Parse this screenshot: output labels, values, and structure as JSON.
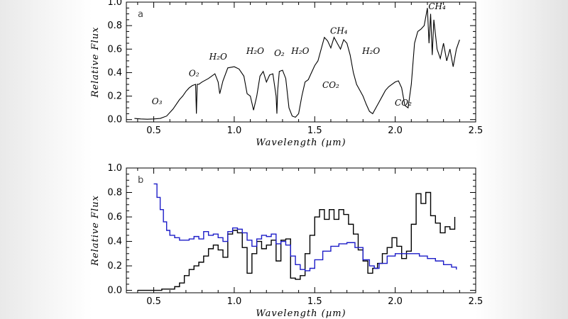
{
  "chart_data": [
    {
      "type": "line",
      "panel": "a",
      "xlabel": "Wavelength (µm)",
      "ylabel": "Relative Flux",
      "xlim": [
        0.33,
        2.5
      ],
      "ylim": [
        -0.02,
        1.0
      ],
      "xticks": [
        0.5,
        1.0,
        1.5,
        2.0,
        2.5
      ],
      "xtick_labels": [
        "0.5",
        "1.0",
        "1.5",
        "2.0",
        "2.5"
      ],
      "yticks": [
        0.0,
        0.2,
        0.4,
        0.6,
        0.8,
        1.0
      ],
      "ytick_labels": [
        "0.0",
        "0.2",
        "0.4",
        "0.6",
        "0.8",
        "1.0"
      ],
      "annotations": [
        {
          "text": "O3",
          "x": 0.52,
          "y": 0.13
        },
        {
          "text": "O2",
          "x": 0.75,
          "y": 0.37
        },
        {
          "text": "H2O",
          "x": 0.9,
          "y": 0.51
        },
        {
          "text": "H2O",
          "x": 1.13,
          "y": 0.56
        },
        {
          "text": "O2",
          "x": 1.28,
          "y": 0.54
        },
        {
          "text": "H2O",
          "x": 1.41,
          "y": 0.56
        },
        {
          "text": "CH4",
          "x": 1.65,
          "y": 0.73
        },
        {
          "text": "CO2",
          "x": 1.6,
          "y": 0.27
        },
        {
          "text": "H2O",
          "x": 1.85,
          "y": 0.56
        },
        {
          "text": "CO2",
          "x": 2.05,
          "y": 0.12
        },
        {
          "text": "CH4",
          "x": 2.26,
          "y": 0.94
        }
      ],
      "series": [
        {
          "name": "spectrum",
          "color": "#000000",
          "x": [
            0.38,
            0.42,
            0.46,
            0.5,
            0.54,
            0.58,
            0.62,
            0.66,
            0.68,
            0.7,
            0.72,
            0.74,
            0.76,
            0.765,
            0.77,
            0.78,
            0.8,
            0.84,
            0.88,
            0.9,
            0.91,
            0.93,
            0.96,
            1.0,
            1.03,
            1.06,
            1.08,
            1.1,
            1.12,
            1.14,
            1.16,
            1.18,
            1.2,
            1.22,
            1.24,
            1.26,
            1.265,
            1.27,
            1.28,
            1.3,
            1.32,
            1.34,
            1.36,
            1.38,
            1.4,
            1.42,
            1.44,
            1.46,
            1.48,
            1.5,
            1.52,
            1.54,
            1.56,
            1.58,
            1.6,
            1.62,
            1.64,
            1.66,
            1.68,
            1.7,
            1.72,
            1.74,
            1.76,
            1.78,
            1.8,
            1.82,
            1.84,
            1.86,
            1.88,
            1.9,
            1.92,
            1.94,
            1.96,
            1.98,
            2.0,
            2.02,
            2.04,
            2.06,
            2.08,
            2.1,
            2.12,
            2.14,
            2.16,
            2.18,
            2.2,
            2.21,
            2.22,
            2.23,
            2.24,
            2.26,
            2.28,
            2.3,
            2.32,
            2.34,
            2.36,
            2.38,
            2.4
          ],
          "y": [
            0.01,
            0.005,
            0.003,
            0.005,
            0.01,
            0.03,
            0.09,
            0.17,
            0.2,
            0.24,
            0.27,
            0.29,
            0.3,
            0.05,
            0.3,
            0.3,
            0.32,
            0.35,
            0.39,
            0.32,
            0.22,
            0.33,
            0.44,
            0.45,
            0.43,
            0.37,
            0.22,
            0.2,
            0.08,
            0.2,
            0.37,
            0.41,
            0.32,
            0.38,
            0.39,
            0.2,
            0.05,
            0.25,
            0.41,
            0.42,
            0.35,
            0.1,
            0.03,
            0.02,
            0.05,
            0.2,
            0.32,
            0.34,
            0.4,
            0.46,
            0.5,
            0.6,
            0.7,
            0.67,
            0.61,
            0.7,
            0.65,
            0.6,
            0.68,
            0.65,
            0.55,
            0.4,
            0.3,
            0.25,
            0.2,
            0.13,
            0.07,
            0.05,
            0.1,
            0.15,
            0.2,
            0.25,
            0.28,
            0.3,
            0.32,
            0.33,
            0.27,
            0.12,
            0.1,
            0.3,
            0.65,
            0.75,
            0.77,
            0.8,
            0.95,
            0.65,
            0.9,
            0.55,
            0.85,
            0.6,
            0.52,
            0.65,
            0.5,
            0.6,
            0.45,
            0.6,
            0.68
          ]
        }
      ]
    },
    {
      "type": "line",
      "panel": "b",
      "step": true,
      "xlabel": "Wavelength (µm)",
      "ylabel": "Relative Flux",
      "xlim": [
        0.33,
        2.5
      ],
      "ylim": [
        -0.02,
        1.0
      ],
      "xticks": [
        0.5,
        1.0,
        1.5,
        2.0,
        2.5
      ],
      "xtick_labels": [
        "0.5",
        "1.0",
        "1.5",
        "2.0",
        "2.5"
      ],
      "yticks": [
        0.0,
        0.2,
        0.4,
        0.6,
        0.8,
        1.0
      ],
      "ytick_labels": [
        "0.0",
        "0.2",
        "0.4",
        "0.6",
        "0.8",
        "1.0"
      ],
      "series": [
        {
          "name": "black binned spectrum",
          "color": "#000000",
          "x": [
            0.4,
            0.5,
            0.55,
            0.6,
            0.63,
            0.66,
            0.69,
            0.72,
            0.75,
            0.78,
            0.81,
            0.84,
            0.87,
            0.9,
            0.93,
            0.96,
            0.99,
            1.02,
            1.05,
            1.08,
            1.11,
            1.14,
            1.17,
            1.2,
            1.23,
            1.26,
            1.29,
            1.32,
            1.35,
            1.38,
            1.41,
            1.44,
            1.47,
            1.5,
            1.53,
            1.56,
            1.59,
            1.62,
            1.65,
            1.68,
            1.71,
            1.74,
            1.77,
            1.8,
            1.83,
            1.86,
            1.89,
            1.92,
            1.95,
            1.98,
            2.01,
            2.04,
            2.07,
            2.1,
            2.13,
            2.16,
            2.19,
            2.22,
            2.25,
            2.28,
            2.31,
            2.34,
            2.37
          ],
          "y": [
            0.0,
            0.0,
            0.01,
            0.01,
            0.03,
            0.06,
            0.12,
            0.17,
            0.2,
            0.23,
            0.28,
            0.34,
            0.37,
            0.33,
            0.27,
            0.46,
            0.49,
            0.47,
            0.35,
            0.14,
            0.3,
            0.4,
            0.34,
            0.37,
            0.41,
            0.24,
            0.41,
            0.42,
            0.1,
            0.09,
            0.12,
            0.3,
            0.45,
            0.6,
            0.66,
            0.58,
            0.66,
            0.58,
            0.66,
            0.62,
            0.54,
            0.46,
            0.33,
            0.24,
            0.14,
            0.18,
            0.22,
            0.3,
            0.35,
            0.43,
            0.36,
            0.26,
            0.32,
            0.54,
            0.79,
            0.71,
            0.8,
            0.61,
            0.55,
            0.47,
            0.52,
            0.5,
            0.6
          ]
        },
        {
          "name": "blue model",
          "color": "#1c1cc8",
          "x": [
            0.5,
            0.52,
            0.54,
            0.56,
            0.58,
            0.6,
            0.63,
            0.66,
            0.69,
            0.72,
            0.75,
            0.78,
            0.81,
            0.84,
            0.87,
            0.9,
            0.93,
            0.96,
            0.99,
            1.02,
            1.05,
            1.08,
            1.11,
            1.14,
            1.17,
            1.2,
            1.23,
            1.26,
            1.29,
            1.32,
            1.35,
            1.38,
            1.41,
            1.44,
            1.47,
            1.5,
            1.55,
            1.6,
            1.65,
            1.7,
            1.75,
            1.8,
            1.84,
            1.87,
            1.9,
            1.95,
            2.0,
            2.05,
            2.1,
            2.15,
            2.2,
            2.25,
            2.3,
            2.35,
            2.38
          ],
          "y": [
            0.87,
            0.76,
            0.66,
            0.56,
            0.49,
            0.45,
            0.43,
            0.41,
            0.41,
            0.42,
            0.44,
            0.42,
            0.48,
            0.45,
            0.46,
            0.43,
            0.4,
            0.48,
            0.51,
            0.5,
            0.47,
            0.41,
            0.36,
            0.42,
            0.45,
            0.44,
            0.46,
            0.38,
            0.4,
            0.37,
            0.28,
            0.21,
            0.17,
            0.16,
            0.18,
            0.25,
            0.32,
            0.36,
            0.38,
            0.39,
            0.35,
            0.25,
            0.2,
            0.18,
            0.22,
            0.28,
            0.3,
            0.3,
            0.3,
            0.28,
            0.26,
            0.24,
            0.21,
            0.19,
            0.17
          ]
        }
      ]
    }
  ]
}
